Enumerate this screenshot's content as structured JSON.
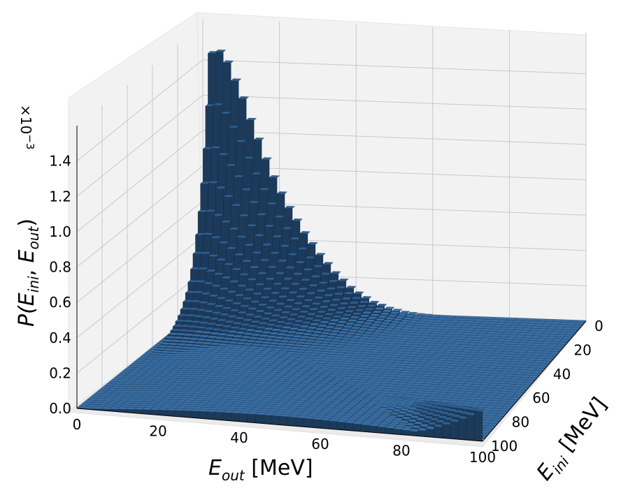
{
  "chart_data": {
    "type": "bar3d",
    "title": "",
    "xlabel": "E_out [MeV]",
    "xlabel_parts": {
      "main": "E",
      "sub": "out",
      "unit": " [MeV]"
    },
    "ylabel": "E_ini [MeV]",
    "ylabel_parts": {
      "main": "E",
      "sub": "ini",
      "unit": " [MeV]"
    },
    "zlabel": "P(E_ini, E_out)",
    "zlabel_parts": {
      "open": "P(",
      "e1": "E",
      "s1": "ini",
      "comma": ", ",
      "e2": "E",
      "s2": "out",
      "close": ")"
    },
    "z_multiplier": "×10",
    "z_multiplier_exp": "−3",
    "x_ticks": [
      "0",
      "20",
      "40",
      "60",
      "80",
      "100"
    ],
    "y_ticks": [
      "0",
      "20",
      "40",
      "60",
      "80",
      "100"
    ],
    "z_ticks": [
      "0.0",
      "0.2",
      "0.4",
      "0.6",
      "0.8",
      "1.0",
      "1.2",
      "1.4"
    ],
    "xlim": [
      0,
      100
    ],
    "ylim": [
      0,
      100
    ],
    "zlim": [
      0,
      1.6
    ],
    "bar_color": "#1f3b5e",
    "grid": true,
    "description_of_data": "Probability P(E_ini, E_out) on a 100x100 grid of initial and outgoing energies",
    "series": [
      {
        "E_ini": 0,
        "E_out": [
          0,
          2,
          5,
          10,
          15,
          20,
          25,
          30,
          35,
          40
        ],
        "P": [
          1.5,
          1.47,
          1.36,
          1.1,
          0.85,
          0.6,
          0.4,
          0.25,
          0.12,
          0.05
        ]
      },
      {
        "E_ini": 20,
        "E_out": [
          0,
          10,
          20,
          30,
          40,
          50
        ],
        "P": [
          0.0,
          0.02,
          0.03,
          0.04,
          0.05,
          0.05
        ]
      },
      {
        "E_ini": 100,
        "E_out": [
          80,
          90,
          95,
          98,
          100
        ],
        "P": [
          0.02,
          0.05,
          0.1,
          0.15,
          0.18
        ]
      }
    ],
    "ridge_along_E_ini_0": {
      "E_out": [
        0,
        1,
        2,
        3,
        4,
        5,
        6,
        8,
        10,
        12,
        14,
        16,
        18,
        20,
        22,
        24,
        26,
        28,
        30,
        32,
        34,
        36,
        38,
        40,
        44,
        48,
        52,
        56,
        60,
        70,
        80,
        90,
        100
      ],
      "P": [
        0.02,
        1.5,
        1.45,
        1.48,
        1.46,
        1.43,
        1.4,
        1.3,
        1.2,
        1.08,
        0.97,
        0.86,
        0.76,
        0.67,
        0.59,
        0.52,
        0.45,
        0.39,
        0.33,
        0.28,
        0.23,
        0.19,
        0.15,
        0.12,
        0.07,
        0.04,
        0.02,
        0.01,
        0.005,
        0.002,
        0.001,
        0.0,
        0.0
      ]
    }
  }
}
